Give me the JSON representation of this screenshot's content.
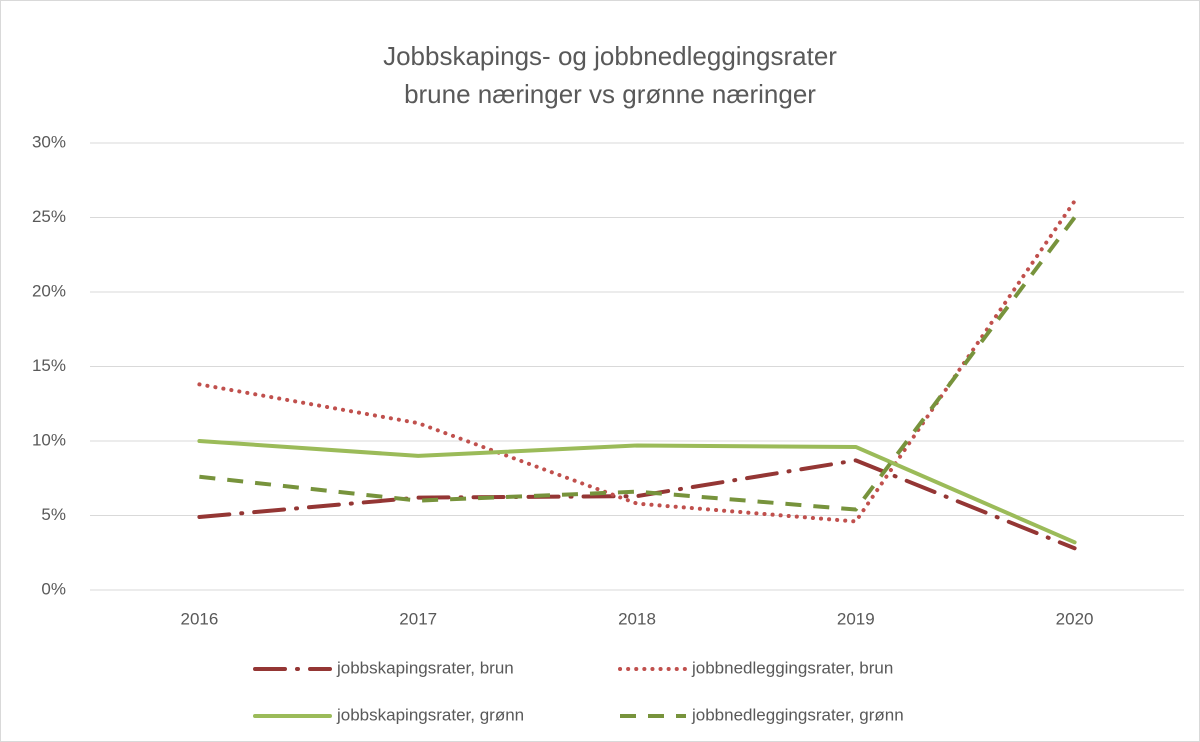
{
  "chart_data": {
    "type": "line",
    "title": "Jobbskapings- og jobbnedleggingsrater",
    "subtitle": "brune næringer vs grønne næringer",
    "categories": [
      "2016",
      "2017",
      "2018",
      "2019",
      "2020"
    ],
    "series": [
      {
        "name": "jobbskapingsrater, brun",
        "color": "#943634",
        "dash": "long-dash-dot",
        "values": [
          4.9,
          6.2,
          6.3,
          8.7,
          2.8
        ]
      },
      {
        "name": "jobbnedleggingsrater, brun",
        "color": "#c0504d",
        "dash": "dot",
        "values": [
          13.8,
          11.2,
          5.8,
          4.6,
          26.1
        ]
      },
      {
        "name": "jobbskapingsrater, grønn",
        "color": "#9bbb59",
        "dash": "solid",
        "values": [
          10.0,
          9.0,
          9.7,
          9.6,
          3.2
        ]
      },
      {
        "name": "jobbnedleggingsrater, grønn",
        "color": "#77933c",
        "dash": "dash",
        "values": [
          7.6,
          6.0,
          6.6,
          5.4,
          25.0
        ]
      }
    ],
    "ylim": [
      0,
      30
    ],
    "yticks": [
      {
        "value": 0,
        "label": "0%"
      },
      {
        "value": 5,
        "label": "5%"
      },
      {
        "value": 10,
        "label": "10%"
      },
      {
        "value": 15,
        "label": "15%"
      },
      {
        "value": 20,
        "label": "20%"
      },
      {
        "value": 25,
        "label": "25%"
      },
      {
        "value": 30,
        "label": "30%"
      }
    ],
    "grid": true,
    "legend": "bottom"
  }
}
